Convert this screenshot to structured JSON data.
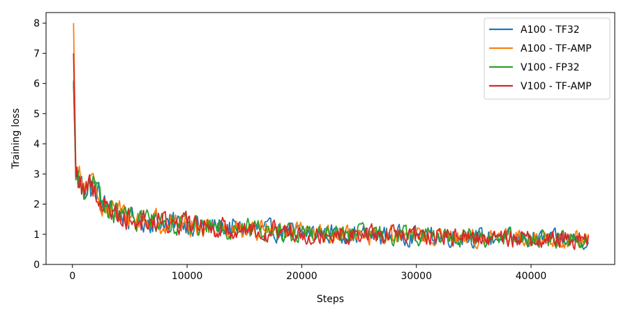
{
  "chart_data": {
    "type": "line",
    "title": "",
    "xlabel": "Steps",
    "ylabel": "Training loss",
    "xlim": [
      -2300,
      47300
    ],
    "ylim": [
      0,
      8.35
    ],
    "xticks": [
      0,
      10000,
      20000,
      30000,
      40000
    ],
    "xtick_labels": [
      "0",
      "10000",
      "20000",
      "30000",
      "40000"
    ],
    "yticks": [
      0,
      1,
      2,
      3,
      4,
      5,
      6,
      7,
      8
    ],
    "ytick_labels": [
      "0",
      "1",
      "2",
      "3",
      "4",
      "5",
      "6",
      "7",
      "8"
    ],
    "grid": false,
    "legend_position": "top-right",
    "x_range": [
      100,
      45000
    ],
    "series": [
      {
        "name": "A100 - TF32",
        "color": "#1f77b4",
        "points": [
          [
            100,
            6.0
          ],
          [
            300,
            2.9
          ],
          [
            1000,
            2.6
          ],
          [
            2000,
            2.5
          ],
          [
            3000,
            1.8
          ],
          [
            5000,
            1.5
          ],
          [
            8000,
            1.4
          ],
          [
            12000,
            1.25
          ],
          [
            16000,
            1.15
          ],
          [
            20000,
            1.05
          ],
          [
            25000,
            1.0
          ],
          [
            30000,
            0.95
          ],
          [
            35000,
            0.9
          ],
          [
            40000,
            0.85
          ],
          [
            45000,
            0.8
          ]
        ]
      },
      {
        "name": "A100 - TF-AMP",
        "color": "#ff7f0e",
        "points": [
          [
            100,
            8.0
          ],
          [
            300,
            3.0
          ],
          [
            1000,
            2.6
          ],
          [
            2000,
            2.5
          ],
          [
            3000,
            1.9
          ],
          [
            5000,
            1.55
          ],
          [
            8000,
            1.4
          ],
          [
            12000,
            1.25
          ],
          [
            16000,
            1.15
          ],
          [
            20000,
            1.05
          ],
          [
            25000,
            1.0
          ],
          [
            30000,
            0.95
          ],
          [
            35000,
            0.9
          ],
          [
            40000,
            0.85
          ],
          [
            45000,
            0.8
          ]
        ]
      },
      {
        "name": "V100 - FP32",
        "color": "#2ca02c",
        "points": [
          [
            100,
            6.1
          ],
          [
            300,
            2.8
          ],
          [
            1000,
            2.6
          ],
          [
            2000,
            2.5
          ],
          [
            3000,
            1.8
          ],
          [
            5000,
            1.55
          ],
          [
            8000,
            1.45
          ],
          [
            12000,
            1.25
          ],
          [
            16000,
            1.15
          ],
          [
            20000,
            1.05
          ],
          [
            25000,
            1.0
          ],
          [
            30000,
            0.95
          ],
          [
            35000,
            0.9
          ],
          [
            40000,
            0.85
          ],
          [
            45000,
            0.85
          ]
        ]
      },
      {
        "name": "V100 - TF-AMP",
        "color": "#d62728",
        "points": [
          [
            100,
            7.0
          ],
          [
            300,
            2.9
          ],
          [
            1000,
            2.6
          ],
          [
            2000,
            2.5
          ],
          [
            3000,
            1.85
          ],
          [
            5000,
            1.5
          ],
          [
            8000,
            1.4
          ],
          [
            12000,
            1.25
          ],
          [
            16000,
            1.15
          ],
          [
            20000,
            1.05
          ],
          [
            25000,
            1.0
          ],
          [
            30000,
            0.95
          ],
          [
            35000,
            0.9
          ],
          [
            40000,
            0.85
          ],
          [
            45000,
            0.85
          ]
        ]
      }
    ]
  }
}
